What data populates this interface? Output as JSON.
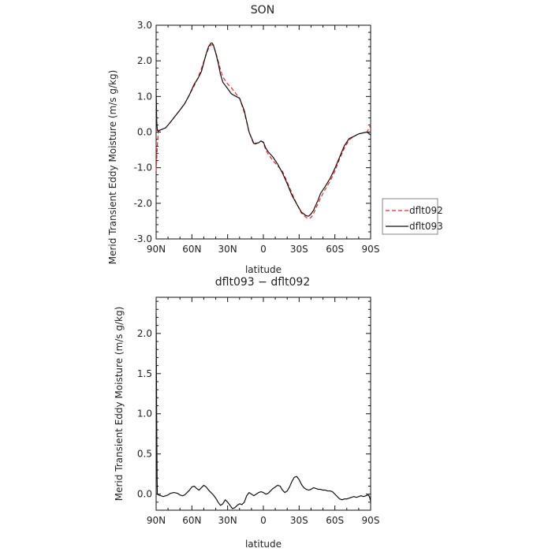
{
  "chart_data": [
    {
      "type": "line",
      "title": "SON",
      "xlabel": "latitude",
      "ylabel": "Merid Transient Eddy Moisture (m/s g/kg)",
      "xlim": [
        90,
        -90
      ],
      "ylim": [
        -3.0,
        3.0
      ],
      "x_ticks": [
        90,
        60,
        30,
        0,
        -30,
        -60,
        -90
      ],
      "x_tick_labels": [
        "90N",
        "60N",
        "30N",
        "0",
        "30S",
        "60S",
        "90S"
      ],
      "y_ticks": [
        -3.0,
        -2.0,
        -1.0,
        0.0,
        1.0,
        2.0,
        3.0
      ],
      "y_tick_labels": [
        "-3.0",
        "-2.0",
        "-1.0",
        "0.0",
        "1.0",
        "2.0",
        "3.0"
      ],
      "legend_position": "right",
      "series": [
        {
          "name": "dflt092",
          "color": "#e8262c",
          "dash": "dashed",
          "x": [
            90,
            89,
            88,
            87,
            85,
            82,
            80,
            77,
            74,
            70,
            66,
            62,
            58,
            55,
            52,
            50,
            48,
            46,
            44,
            43,
            42,
            40,
            38,
            36,
            34,
            30,
            27,
            24,
            20,
            16,
            12,
            8,
            4,
            2,
            0,
            -2,
            -4,
            -8,
            -12,
            -16,
            -20,
            -24,
            -28,
            -32,
            -36,
            -38,
            -40,
            -42,
            -44,
            -46,
            -48,
            -52,
            -56,
            -60,
            -64,
            -68,
            -72,
            -76,
            -80,
            -84,
            -87,
            -90
          ],
          "y": [
            -1.1,
            -0.4,
            0.1,
            0.05,
            0.08,
            0.12,
            0.2,
            0.32,
            0.45,
            0.62,
            0.8,
            1.05,
            1.3,
            1.52,
            1.78,
            1.98,
            2.18,
            2.35,
            2.45,
            2.45,
            2.42,
            2.25,
            2.0,
            1.75,
            1.55,
            1.35,
            1.25,
            1.12,
            0.95,
            0.55,
            0.0,
            -0.35,
            -0.3,
            -0.25,
            -0.3,
            -0.5,
            -0.62,
            -0.8,
            -0.95,
            -1.1,
            -1.4,
            -1.72,
            -2.02,
            -2.28,
            -2.4,
            -2.42,
            -2.4,
            -2.3,
            -2.15,
            -2.0,
            -1.85,
            -1.6,
            -1.38,
            -1.1,
            -0.75,
            -0.45,
            -0.22,
            -0.12,
            -0.05,
            -0.02,
            0.0,
            0.2
          ]
        },
        {
          "name": "dflt093",
          "color": "#111111",
          "dash": "solid",
          "x": [
            90,
            89.5,
            89,
            88,
            87,
            85,
            82,
            80,
            77,
            74,
            70,
            66,
            62,
            58,
            55,
            52,
            50,
            48,
            46,
            44,
            43,
            42,
            40,
            38,
            36,
            34,
            30,
            27,
            24,
            20,
            16,
            12,
            8,
            4,
            2,
            0,
            -2,
            -4,
            -8,
            -12,
            -16,
            -20,
            -24,
            -28,
            -32,
            -36,
            -38,
            -40,
            -42,
            -44,
            -46,
            -48,
            -52,
            -56,
            -60,
            -64,
            -68,
            -72,
            -76,
            -80,
            -84,
            -87,
            -90
          ],
          "y": [
            1.2,
            0.3,
            0.05,
            0.02,
            0.05,
            0.08,
            0.12,
            0.2,
            0.32,
            0.45,
            0.62,
            0.8,
            1.05,
            1.35,
            1.5,
            1.7,
            1.95,
            2.2,
            2.4,
            2.5,
            2.5,
            2.45,
            2.22,
            1.95,
            1.62,
            1.4,
            1.22,
            1.08,
            1.02,
            0.95,
            0.6,
            0.0,
            -0.32,
            -0.3,
            -0.25,
            -0.28,
            -0.45,
            -0.55,
            -0.7,
            -0.9,
            -1.15,
            -1.45,
            -1.78,
            -2.02,
            -2.25,
            -2.35,
            -2.36,
            -2.3,
            -2.2,
            -2.05,
            -1.9,
            -1.72,
            -1.52,
            -1.3,
            -1.02,
            -0.7,
            -0.38,
            -0.18,
            -0.12,
            -0.05,
            -0.02,
            0.0,
            -0.08
          ]
        }
      ]
    },
    {
      "type": "line",
      "title": "dflt093 − dflt092",
      "xlabel": "latitude",
      "ylabel": "Merid Transient Eddy Moisture (m/s g/kg)",
      "xlim": [
        90,
        -90
      ],
      "ylim": [
        -0.2,
        2.45
      ],
      "x_ticks": [
        90,
        60,
        30,
        0,
        -30,
        -60,
        -90
      ],
      "x_tick_labels": [
        "90N",
        "60N",
        "30N",
        "0",
        "30S",
        "60S",
        "90S"
      ],
      "y_ticks": [
        0.0,
        0.5,
        1.0,
        1.5,
        2.0
      ],
      "y_tick_labels": [
        "0.0",
        "0.5",
        "1.0",
        "1.5",
        "2.0"
      ],
      "series": [
        {
          "color": "#111111",
          "dash": "solid",
          "x": [
            90,
            89.5,
            89.2,
            89,
            88,
            86,
            84,
            82,
            80,
            78,
            75,
            72,
            70,
            68,
            66,
            64,
            62,
            60,
            58,
            56,
            54,
            52,
            50,
            48,
            46,
            44,
            42,
            40,
            38,
            36,
            34,
            32,
            30,
            28,
            26,
            24,
            22,
            20,
            18,
            16,
            14,
            12,
            10,
            8,
            6,
            4,
            2,
            0,
            -2,
            -4,
            -6,
            -8,
            -10,
            -12,
            -14,
            -16,
            -18,
            -20,
            -22,
            -24,
            -26,
            -28,
            -30,
            -32,
            -34,
            -36,
            -38,
            -40,
            -42,
            -44,
            -46,
            -48,
            -50,
            -52,
            -54,
            -56,
            -58,
            -60,
            -62,
            -64,
            -66,
            -68,
            -70,
            -72,
            -74,
            -76,
            -78,
            -80,
            -82,
            -84,
            -86,
            -88,
            -89,
            -90
          ],
          "y": [
            2.25,
            0.8,
            0.2,
            0.0,
            -0.01,
            -0.02,
            -0.03,
            -0.02,
            -0.01,
            0.01,
            0.02,
            0.01,
            -0.01,
            -0.02,
            -0.01,
            0.02,
            0.05,
            0.09,
            0.1,
            0.07,
            0.05,
            0.08,
            0.11,
            0.09,
            0.05,
            0.02,
            -0.01,
            -0.05,
            -0.1,
            -0.14,
            -0.12,
            -0.07,
            -0.1,
            -0.14,
            -0.18,
            -0.17,
            -0.14,
            -0.12,
            -0.13,
            -0.1,
            -0.02,
            0.02,
            0.0,
            -0.02,
            0.0,
            0.02,
            0.03,
            0.02,
            0.0,
            0.01,
            0.04,
            0.07,
            0.09,
            0.11,
            0.1,
            0.05,
            0.02,
            0.04,
            0.09,
            0.16,
            0.21,
            0.22,
            0.18,
            0.12,
            0.08,
            0.06,
            0.05,
            0.06,
            0.08,
            0.07,
            0.06,
            0.06,
            0.05,
            0.05,
            0.04,
            0.04,
            0.03,
            0.0,
            -0.03,
            -0.06,
            -0.07,
            -0.06,
            -0.06,
            -0.05,
            -0.04,
            -0.03,
            -0.04,
            -0.03,
            -0.02,
            -0.03,
            -0.02,
            -0.01,
            -0.03,
            -0.09
          ]
        }
      ]
    }
  ]
}
